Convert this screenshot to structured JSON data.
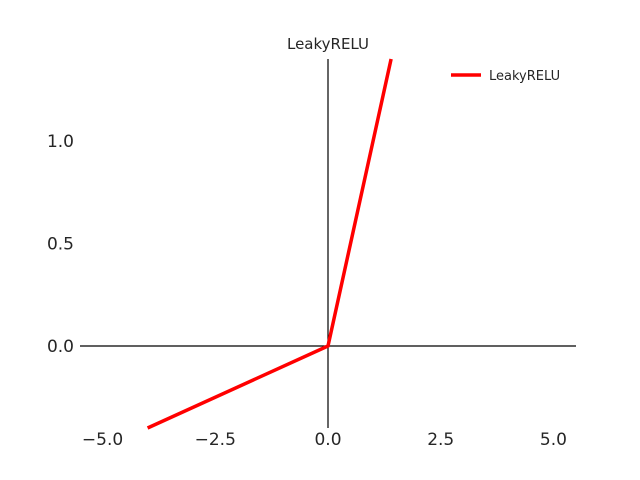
{
  "chart_data": {
    "type": "line",
    "title": "LeakyRELU",
    "xlabel": "",
    "ylabel": "",
    "xlim": [
      -5.5,
      5.5
    ],
    "ylim": [
      -0.4,
      1.4
    ],
    "xticks": [
      -5.0,
      -2.5,
      0.0,
      2.5,
      5.0
    ],
    "xtick_labels": [
      "−5.0",
      "−2.5",
      "0.0",
      "2.5",
      "5.0"
    ],
    "yticks": [
      0.0,
      0.5,
      1.0
    ],
    "ytick_labels": [
      "0.0",
      "0.5",
      "1.0"
    ],
    "grid": false,
    "spines": "centered at origin",
    "legend_position": "top-right",
    "series": [
      {
        "name": "LeakyRELU",
        "color": "#ff0000",
        "x": [
          -4.0,
          0.0,
          1.4
        ],
        "y": [
          -0.4,
          0.0,
          1.4
        ]
      }
    ]
  }
}
